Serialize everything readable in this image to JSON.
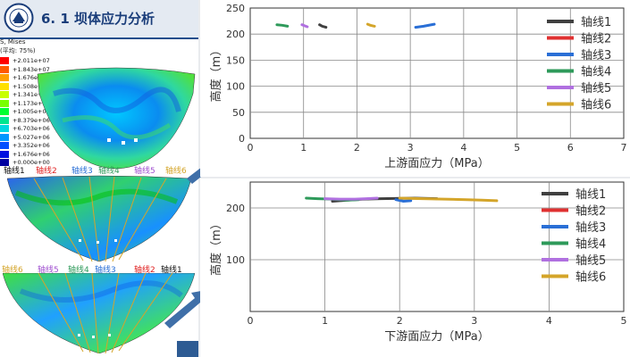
{
  "left_panel": {
    "title": "6. 1  坝体应力分析",
    "field_label": "S, Mises",
    "average_label": "(平均: 75%)",
    "legend": [
      {
        "text": "+2.011e+07",
        "color": "#ff0000"
      },
      {
        "text": "+1.843e+07",
        "color": "#ff5a00"
      },
      {
        "text": "+1.676e+07",
        "color": "#ffa000"
      },
      {
        "text": "+1.508e+07",
        "color": "#ffe000"
      },
      {
        "text": "+1.341e+07",
        "color": "#c8ff00"
      },
      {
        "text": "+1.173e+07",
        "color": "#78ff00"
      },
      {
        "text": "+1.005e+07",
        "color": "#00ff30"
      },
      {
        "text": "+8.379e+06",
        "color": "#00e690"
      },
      {
        "text": "+6.703e+06",
        "color": "#00d8e0"
      },
      {
        "text": "+5.027e+06",
        "color": "#0096ff"
      },
      {
        "text": "+3.352e+06",
        "color": "#0050ff"
      },
      {
        "text": "+1.676e+06",
        "color": "#0010e0"
      },
      {
        "text": "+0.000e+00",
        "color": "#0000a0"
      }
    ],
    "axis_labels_row1": [
      {
        "text": "轴线1",
        "color": "#111111"
      },
      {
        "text": "轴线2",
        "color": "#e02020"
      },
      {
        "text": "轴线3",
        "color": "#2a6fd6"
      },
      {
        "text": "轴线4",
        "color": "#2e9a5a"
      },
      {
        "text": "轴线5",
        "color": "#a050d0"
      },
      {
        "text": "轴线6",
        "color": "#d4a52a"
      }
    ],
    "axis_labels_row2": [
      {
        "text": "轴线6",
        "color": "#d4a52a"
      },
      {
        "text": "轴线5",
        "color": "#a050d0"
      },
      {
        "text": "轴线4",
        "color": "#2e9a5a"
      },
      {
        "text": "轴线3",
        "color": "#2a6fd6"
      },
      {
        "text": "轴线2",
        "color": "#e02020"
      },
      {
        "text": "轴线1",
        "color": "#111111"
      }
    ]
  },
  "chart_data": [
    {
      "type": "line",
      "xlabel": "上游面应力（MPa）",
      "ylabel": "高度（m）",
      "xlim": [
        0,
        7
      ],
      "ylim": [
        0,
        250
      ],
      "xticks": [
        0,
        1,
        2,
        3,
        4,
        5,
        6,
        7
      ],
      "yticks": [
        0,
        50,
        100,
        150,
        200,
        250
      ],
      "grid": true,
      "legend_position": "top-right",
      "series": [
        {
          "name": "轴线1",
          "color": "#404040",
          "points": [
            [
              1.3,
              218
            ],
            [
              1.35,
              215
            ],
            [
              1.42,
              213
            ]
          ]
        },
        {
          "name": "轴线2",
          "color": "#e03030",
          "points": []
        },
        {
          "name": "轴线3",
          "color": "#2a6fd6",
          "points": [
            [
              3.1,
              213
            ],
            [
              3.25,
              215
            ],
            [
              3.45,
              219
            ]
          ]
        },
        {
          "name": "轴线4",
          "color": "#2e9a5a",
          "points": [
            [
              0.5,
              218
            ],
            [
              0.6,
              217
            ],
            [
              0.7,
              215
            ]
          ]
        },
        {
          "name": "轴线5",
          "color": "#b070e0",
          "points": [
            [
              0.97,
              218
            ],
            [
              1.02,
              216
            ],
            [
              1.07,
              214
            ]
          ]
        },
        {
          "name": "轴线6",
          "color": "#d4a52a",
          "points": [
            [
              2.2,
              219
            ],
            [
              2.25,
              217
            ],
            [
              2.33,
              215
            ]
          ]
        }
      ]
    },
    {
      "type": "line",
      "xlabel": "下游面应力（MPa）",
      "ylabel": "高度（m）",
      "xlim": [
        0,
        5
      ],
      "ylim": [
        0,
        250
      ],
      "xticks": [
        0,
        1,
        2,
        3,
        4,
        5
      ],
      "yticks": [
        100,
        200
      ],
      "grid": true,
      "legend_position": "top-right",
      "series": [
        {
          "name": "轴线1",
          "color": "#404040",
          "points": [
            [
              1.1,
              213
            ],
            [
              1.3,
              215
            ],
            [
              1.5,
              217
            ],
            [
              1.75,
              218
            ],
            [
              2.2,
              219
            ],
            [
              2.5,
              218
            ]
          ]
        },
        {
          "name": "轴线2",
          "color": "#e03030",
          "points": []
        },
        {
          "name": "轴线3",
          "color": "#2a6fd6",
          "points": [
            [
              1.95,
              216
            ],
            [
              2.05,
              213
            ],
            [
              2.15,
              214
            ]
          ]
        },
        {
          "name": "轴线4",
          "color": "#2e9a5a",
          "points": [
            [
              0.75,
              219
            ],
            [
              0.9,
              218
            ],
            [
              1.1,
              217
            ],
            [
              1.3,
              215
            ],
            [
              1.45,
              216
            ]
          ]
        },
        {
          "name": "轴线5",
          "color": "#b070e0",
          "points": [
            [
              1.0,
              218
            ],
            [
              1.2,
              217
            ],
            [
              1.4,
              217
            ],
            [
              1.55,
              218
            ],
            [
              1.7,
              219
            ]
          ]
        },
        {
          "name": "轴线6",
          "color": "#d4a52a",
          "points": [
            [
              2.0,
              219
            ],
            [
              2.3,
              218
            ],
            [
              2.6,
              217
            ],
            [
              2.9,
              216
            ],
            [
              3.1,
              215
            ],
            [
              3.3,
              214
            ]
          ]
        }
      ]
    }
  ]
}
